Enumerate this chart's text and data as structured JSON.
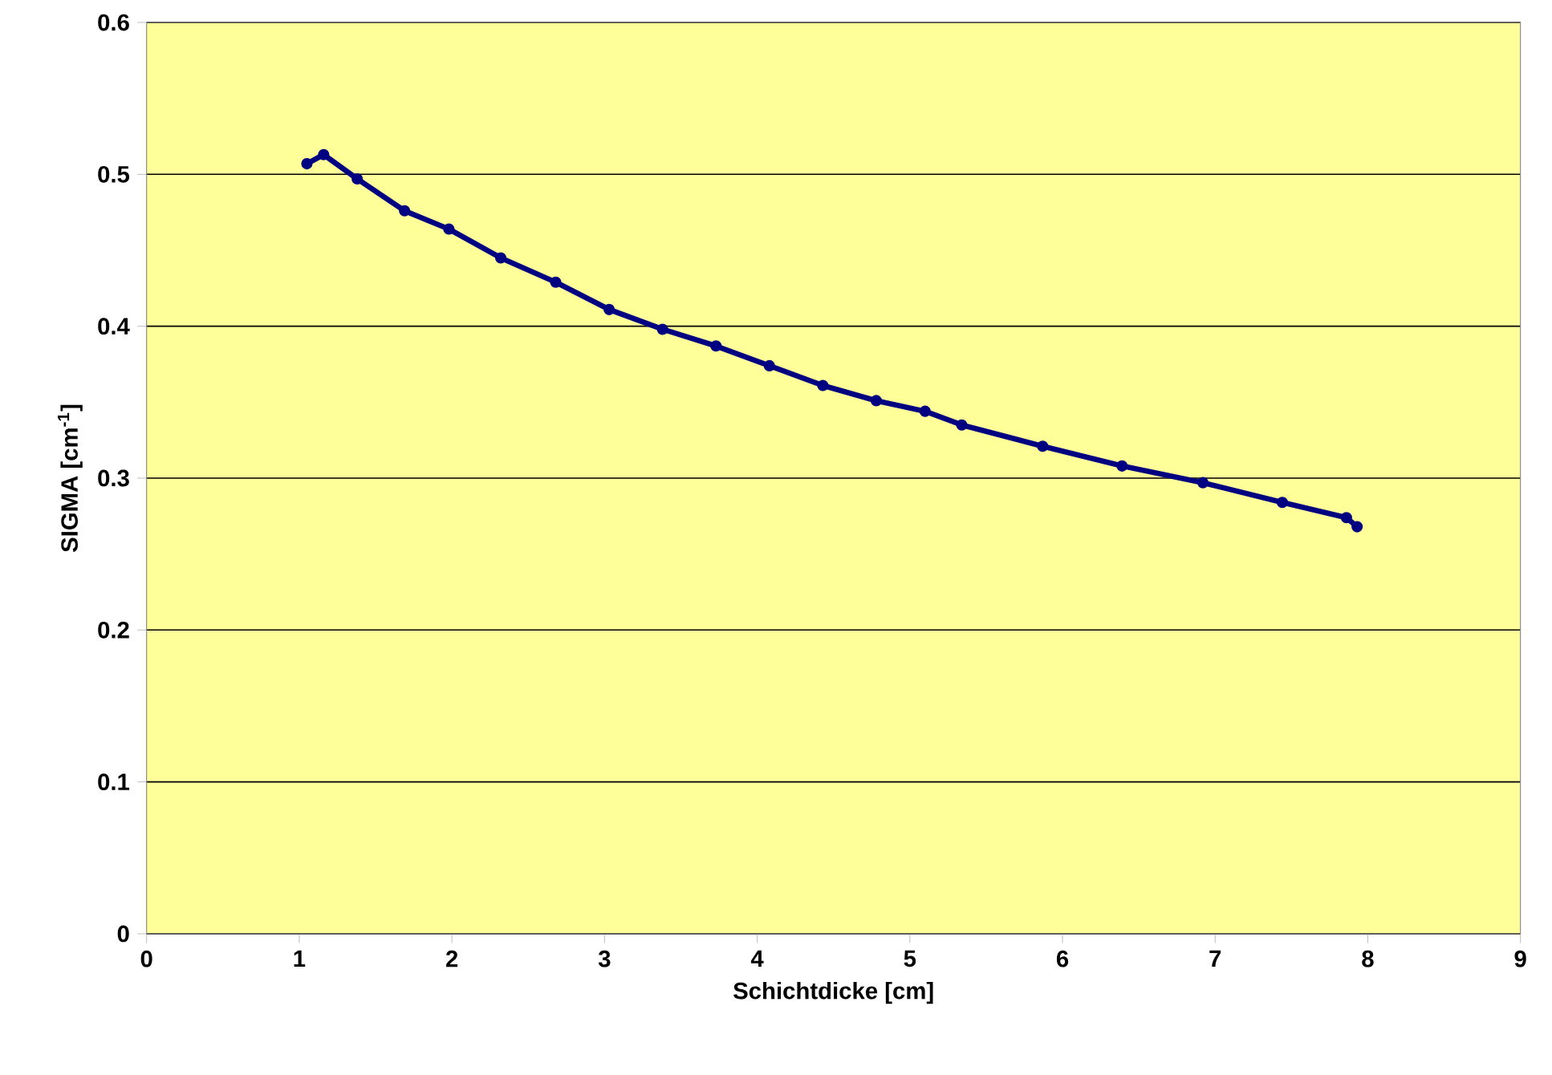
{
  "chart_data": {
    "type": "line",
    "xlabel": "Schichtdicke [cm]",
    "ylabel": "SIGMA [cm$^{-1}$]",
    "xlim": [
      0,
      9
    ],
    "xticks": [
      0,
      1,
      2,
      3,
      4,
      5,
      6,
      7,
      8,
      9
    ],
    "ylim": [
      0,
      0.6
    ],
    "yticks": [
      0,
      0.1,
      0.2,
      0.3,
      0.4,
      0.5,
      0.6
    ],
    "grid": "y",
    "marker": "circle",
    "line_style": "solid",
    "series": [
      {
        "color": "#000080",
        "x": [
          1.05,
          1.16,
          1.38,
          1.69,
          1.98,
          2.32,
          2.68,
          3.03,
          3.38,
          3.73,
          4.08,
          4.43,
          4.78,
          5.1,
          5.34,
          5.87,
          6.39,
          6.92,
          7.44,
          7.86,
          7.93
        ],
        "values": [
          0.507,
          0.513,
          0.497,
          0.476,
          0.464,
          0.445,
          0.429,
          0.411,
          0.398,
          0.387,
          0.374,
          0.361,
          0.351,
          0.344,
          0.335,
          0.321,
          0.308,
          0.297,
          0.284,
          0.274,
          0.268
        ]
      }
    ]
  }
}
